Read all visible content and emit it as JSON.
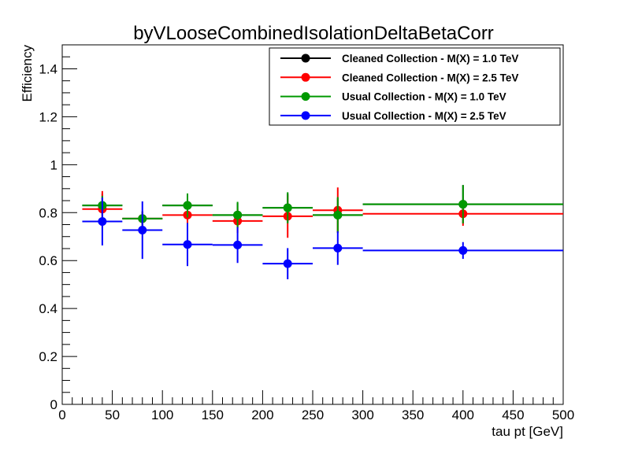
{
  "chart_data": {
    "type": "scatter",
    "title": "byVLooseCombinedIsolationDeltaBetaCorr",
    "xlabel": "tau pt [GeV]",
    "ylabel": "Efficiency",
    "xlim": [
      0,
      500
    ],
    "ylim": [
      0,
      1.5
    ],
    "x_ticks": [
      "0",
      "50",
      "100",
      "150",
      "200",
      "250",
      "300",
      "350",
      "400",
      "450",
      "500"
    ],
    "y_ticks": [
      "0",
      "0.2",
      "0.4",
      "0.6",
      "0.8",
      "1",
      "1.2",
      "1.4"
    ],
    "grid": false,
    "legend_position": "top-right",
    "bins": [
      [
        20,
        60
      ],
      [
        60,
        100
      ],
      [
        100,
        150
      ],
      [
        150,
        200
      ],
      [
        200,
        250
      ],
      [
        250,
        300
      ],
      [
        300,
        500
      ]
    ],
    "series": [
      {
        "name": "Cleaned Collection - M(X) = 1.0 TeV",
        "color": "#000000",
        "x": [
          40,
          80,
          125,
          175,
          225,
          275,
          400
        ],
        "y": [
          0.83,
          0.775,
          0.83,
          0.79,
          0.82,
          0.79,
          0.835
        ],
        "yerr": [
          0.05,
          0.03,
          0.04,
          0.05,
          0.06,
          0.07,
          0.08
        ]
      },
      {
        "name": "Cleaned Collection - M(X) = 2.5 TeV",
        "color": "#ff0000",
        "x": [
          40,
          80,
          125,
          175,
          225,
          275,
          400
        ],
        "y": [
          0.815,
          0.775,
          0.79,
          0.765,
          0.785,
          0.81,
          0.795
        ],
        "yerr": [
          0.075,
          0.03,
          0.06,
          0.05,
          0.09,
          0.095,
          0.05
        ]
      },
      {
        "name": "Usual Collection - M(X) = 1.0 TeV",
        "color": "#009900",
        "x": [
          40,
          80,
          125,
          175,
          225,
          275,
          400
        ],
        "y": [
          0.83,
          0.775,
          0.83,
          0.79,
          0.82,
          0.79,
          0.835
        ],
        "yerr": [
          0.04,
          0.03,
          0.05,
          0.055,
          0.065,
          0.075,
          0.08
        ]
      },
      {
        "name": "Usual Collection - M(X) = 2.5 TeV",
        "color": "#0000ff",
        "x": [
          40,
          80,
          125,
          175,
          225,
          275,
          400
        ],
        "y": [
          0.763,
          0.727,
          0.667,
          0.665,
          0.587,
          0.652,
          0.642
        ],
        "yerr": [
          0.1,
          0.12,
          0.09,
          0.075,
          0.065,
          0.07,
          0.035
        ]
      }
    ]
  }
}
